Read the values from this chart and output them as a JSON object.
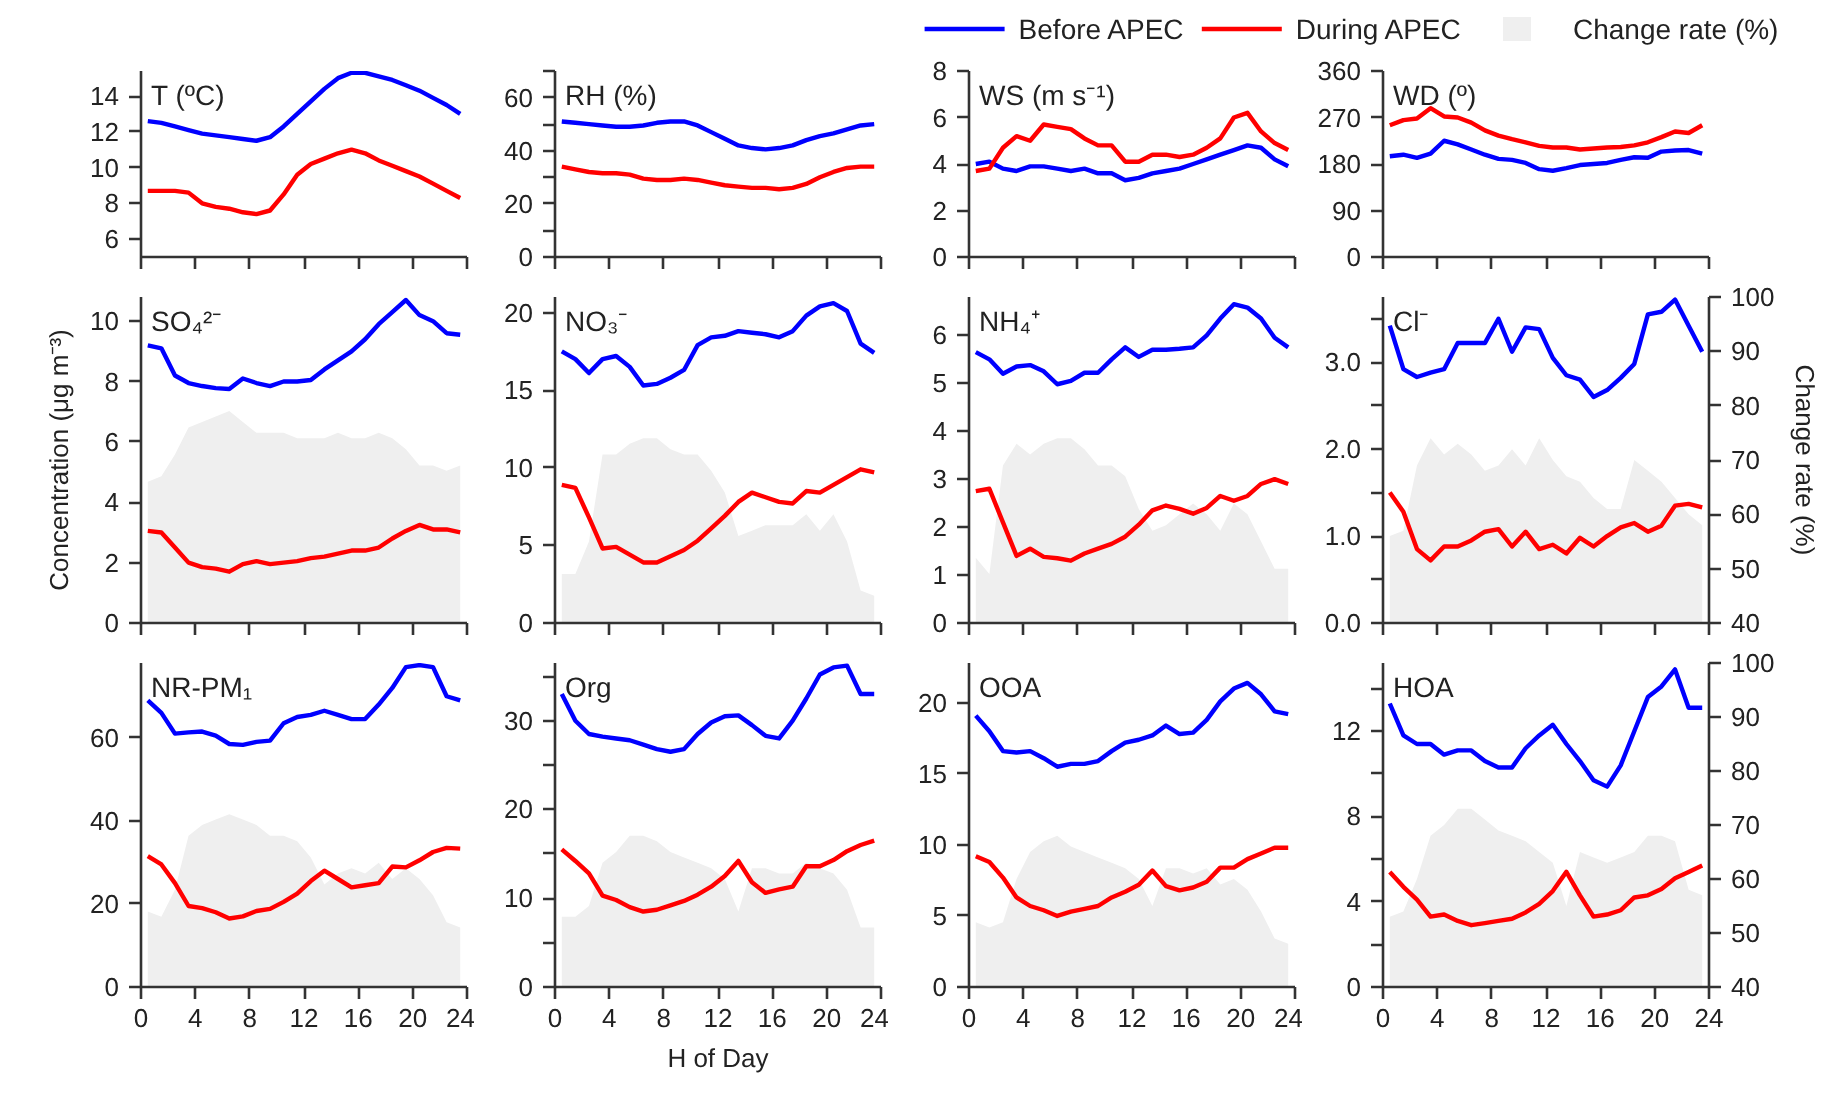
{
  "chart_data": [
    {
      "type": "line",
      "title": "T (ºC)",
      "x": [
        0.5,
        1.5,
        2.5,
        3.5,
        4.5,
        5.5,
        6.5,
        7.5,
        8.5,
        9.5,
        10.5,
        11.5,
        12.5,
        13.5,
        14.5,
        15.5,
        16.5,
        17.5,
        18.5,
        19.5,
        20.5,
        21.5,
        22.5,
        23.5
      ],
      "xlim": [
        0,
        24
      ],
      "xticks": [
        0,
        4,
        8,
        12,
        16,
        20,
        24
      ],
      "ylim": [
        5,
        15.4
      ],
      "yticks": [
        6,
        8,
        10,
        12,
        14
      ],
      "tick_labels": "y",
      "series": [
        {
          "color": "#0000ff",
          "values": [
            12.6,
            12.5,
            12.3,
            12.1,
            11.9,
            11.8,
            11.7,
            11.6,
            11.5,
            11.7,
            12.3,
            13.0,
            13.7,
            14.4,
            15.0,
            15.3,
            15.3,
            15.1,
            14.9,
            14.6,
            14.3,
            13.9,
            13.5,
            13.0
          ]
        },
        {
          "color": "#ff0000",
          "values": [
            8.7,
            8.7,
            8.7,
            8.6,
            8.0,
            7.8,
            7.7,
            7.5,
            7.4,
            7.6,
            8.5,
            9.6,
            10.2,
            10.5,
            10.8,
            11.0,
            10.8,
            10.4,
            10.1,
            9.8,
            9.5,
            9.1,
            8.7,
            8.3
          ]
        }
      ]
    },
    {
      "type": "line",
      "title": "RH (%)",
      "x": [
        0.5,
        1.5,
        2.5,
        3.5,
        4.5,
        5.5,
        6.5,
        7.5,
        8.5,
        9.5,
        10.5,
        11.5,
        12.5,
        13.5,
        14.5,
        15.5,
        16.5,
        17.5,
        18.5,
        19.5,
        20.5,
        21.5,
        22.5,
        23.5
      ],
      "xlim": [
        0,
        24
      ],
      "xticks": [
        0,
        4,
        8,
        12,
        16,
        20,
        24
      ],
      "ylim": [
        0,
        70
      ],
      "yticks": [
        0,
        {
          "value": 10,
          "label": null
        },
        20,
        {
          "value": 30,
          "label": null
        },
        40,
        {
          "value": 50,
          "label": null
        },
        60,
        {
          "value": 70,
          "label": null
        }
      ],
      "tick_labels": "y",
      "series": [
        {
          "color": "#0000ff",
          "values": [
            51,
            50.5,
            50,
            49.5,
            49,
            49,
            49.5,
            50.5,
            51,
            51,
            49.5,
            47,
            44.5,
            42,
            41,
            40.5,
            41,
            42,
            44,
            45.5,
            46.5,
            48,
            49.5,
            50
          ]
        },
        {
          "color": "#ff0000",
          "values": [
            34,
            33,
            32,
            31.5,
            31.5,
            31,
            29.5,
            29,
            29,
            29.5,
            29,
            28,
            27,
            26.5,
            26,
            26,
            25.5,
            26,
            27.5,
            30,
            32,
            33.5,
            34,
            34
          ]
        }
      ]
    },
    {
      "type": "line",
      "title": "WS (m s⁻¹)",
      "x": [
        0.5,
        1.5,
        2.5,
        3.5,
        4.5,
        5.5,
        6.5,
        7.5,
        8.5,
        9.5,
        10.5,
        11.5,
        12.5,
        13.5,
        14.5,
        15.5,
        16.5,
        17.5,
        18.5,
        19.5,
        20.5,
        21.5,
        22.5,
        23.5
      ],
      "xlim": [
        0,
        24
      ],
      "xticks": [
        0,
        4,
        8,
        12,
        16,
        20,
        24
      ],
      "ylim": [
        0,
        8
      ],
      "yticks": [
        0,
        2,
        4,
        6,
        8
      ],
      "tick_labels": "y",
      "series": [
        {
          "color": "#0000ff",
          "values": [
            4.0,
            4.1,
            3.8,
            3.7,
            3.9,
            3.9,
            3.8,
            3.7,
            3.8,
            3.6,
            3.6,
            3.3,
            3.4,
            3.6,
            3.7,
            3.8,
            4.0,
            4.2,
            4.4,
            4.6,
            4.8,
            4.7,
            4.2,
            3.9
          ]
        },
        {
          "color": "#ff0000",
          "values": [
            3.7,
            3.8,
            4.7,
            5.2,
            5.0,
            5.7,
            5.6,
            5.5,
            5.1,
            4.8,
            4.8,
            4.1,
            4.1,
            4.4,
            4.4,
            4.3,
            4.4,
            4.7,
            5.1,
            6.0,
            6.2,
            5.4,
            4.9,
            4.6
          ]
        }
      ]
    },
    {
      "type": "line",
      "title": "WD (º)",
      "x": [
        0.5,
        1.5,
        2.5,
        3.5,
        4.5,
        5.5,
        6.5,
        7.5,
        8.5,
        9.5,
        10.5,
        11.5,
        12.5,
        13.5,
        14.5,
        15.5,
        16.5,
        17.5,
        18.5,
        19.5,
        20.5,
        21.5,
        22.5,
        23.5
      ],
      "xlim": [
        0,
        24
      ],
      "xticks": [
        0,
        4,
        8,
        12,
        16,
        20,
        24
      ],
      "ylim": [
        0,
        360
      ],
      "yticks": [
        0,
        90,
        180,
        270,
        360
      ],
      "tick_labels": "y",
      "series": [
        {
          "color": "#0000ff",
          "values": [
            195,
            198,
            192,
            200,
            225,
            218,
            208,
            198,
            190,
            188,
            182,
            170,
            167,
            172,
            178,
            180,
            182,
            188,
            193,
            192,
            204,
            206,
            207,
            200
          ]
        },
        {
          "color": "#ff0000",
          "values": [
            255,
            265,
            268,
            288,
            272,
            270,
            260,
            245,
            235,
            228,
            222,
            215,
            212,
            212,
            208,
            210,
            212,
            213,
            216,
            222,
            232,
            243,
            240,
            255
          ]
        }
      ]
    },
    {
      "type": "line",
      "title": "SO₄²⁻",
      "ylabel": "Concentration (μg m⁻³)",
      "x": [
        0.5,
        1.5,
        2.5,
        3.5,
        4.5,
        5.5,
        6.5,
        7.5,
        8.5,
        9.5,
        10.5,
        11.5,
        12.5,
        13.5,
        14.5,
        15.5,
        16.5,
        17.5,
        18.5,
        19.5,
        20.5,
        21.5,
        22.5,
        23.5
      ],
      "xlim": [
        0,
        24
      ],
      "xticks": [
        0,
        4,
        8,
        12,
        16,
        20,
        24
      ],
      "ylim": [
        0,
        10.8
      ],
      "yticks": [
        0,
        2,
        4,
        6,
        8,
        10
      ],
      "y2lim": [
        40,
        100
      ],
      "tick_labels": "y",
      "series": [
        {
          "type": "area",
          "axis": "y2",
          "color": "#efefef",
          "values": [
            66,
            67,
            71,
            76,
            77,
            78,
            79,
            77,
            75,
            75,
            75,
            74,
            74,
            74,
            75,
            74,
            74,
            75,
            74,
            72,
            69,
            69,
            68,
            69
          ]
        },
        {
          "color": "#0000ff",
          "values": [
            9.2,
            9.1,
            8.2,
            7.95,
            7.85,
            7.78,
            7.75,
            8.1,
            7.95,
            7.85,
            8.0,
            8.0,
            8.05,
            8.4,
            8.7,
            9.0,
            9.4,
            9.9,
            10.3,
            10.7,
            10.2,
            10.0,
            9.6,
            9.55
          ]
        },
        {
          "color": "#ff0000",
          "values": [
            3.05,
            3.0,
            2.5,
            2.0,
            1.85,
            1.8,
            1.7,
            1.95,
            2.05,
            1.95,
            2.0,
            2.05,
            2.15,
            2.2,
            2.3,
            2.4,
            2.4,
            2.5,
            2.8,
            3.05,
            3.25,
            3.1,
            3.1,
            3.0
          ]
        }
      ]
    },
    {
      "type": "line",
      "title": "NO₃⁻",
      "x": [
        0.5,
        1.5,
        2.5,
        3.5,
        4.5,
        5.5,
        6.5,
        7.5,
        8.5,
        9.5,
        10.5,
        11.5,
        12.5,
        13.5,
        14.5,
        15.5,
        16.5,
        17.5,
        18.5,
        19.5,
        20.5,
        21.5,
        22.5,
        23.5
      ],
      "xlim": [
        0,
        24
      ],
      "xticks": [
        0,
        4,
        8,
        12,
        16,
        20,
        24
      ],
      "ylim": [
        0,
        21
      ],
      "yticks": [
        0,
        5,
        10,
        15,
        20
      ],
      "y2lim": [
        40,
        100
      ],
      "tick_labels": "y",
      "series": [
        {
          "type": "area",
          "axis": "y2",
          "color": "#efefef",
          "values": [
            49,
            49,
            55,
            71,
            71,
            73,
            74,
            74,
            72,
            71,
            71,
            68,
            64,
            56,
            57,
            58,
            58,
            58,
            60,
            57,
            60,
            55,
            46,
            45
          ]
        },
        {
          "color": "#0000ff",
          "values": [
            17.5,
            17.0,
            16.1,
            17.0,
            17.2,
            16.5,
            15.3,
            15.4,
            15.8,
            16.3,
            17.9,
            18.4,
            18.5,
            18.8,
            18.7,
            18.6,
            18.4,
            18.8,
            19.8,
            20.4,
            20.6,
            20.1,
            18.0,
            17.4
          ]
        },
        {
          "color": "#ff0000",
          "values": [
            8.9,
            8.7,
            6.8,
            4.8,
            4.9,
            4.4,
            3.9,
            3.9,
            4.3,
            4.7,
            5.3,
            6.1,
            6.9,
            7.8,
            8.4,
            8.1,
            7.8,
            7.7,
            8.5,
            8.4,
            8.9,
            9.4,
            9.9,
            9.7
          ]
        }
      ]
    },
    {
      "type": "line",
      "title": "NH₄⁺",
      "x": [
        0.5,
        1.5,
        2.5,
        3.5,
        4.5,
        5.5,
        6.5,
        7.5,
        8.5,
        9.5,
        10.5,
        11.5,
        12.5,
        13.5,
        14.5,
        15.5,
        16.5,
        17.5,
        18.5,
        19.5,
        20.5,
        21.5,
        22.5,
        23.5
      ],
      "xlim": [
        0,
        24
      ],
      "xticks": [
        0,
        4,
        8,
        12,
        16,
        20,
        24
      ],
      "ylim": [
        0,
        6.8
      ],
      "yticks": [
        0,
        1,
        2,
        3,
        4,
        5,
        6
      ],
      "y2lim": [
        40,
        100
      ],
      "tick_labels": "y",
      "series": [
        {
          "type": "area",
          "axis": "y2",
          "color": "#efefef",
          "values": [
            52,
            49,
            69,
            73,
            71,
            73,
            74,
            74,
            72,
            69,
            69,
            67,
            61,
            57,
            58,
            60,
            62,
            60,
            57,
            62,
            60,
            55,
            50,
            50
          ]
        },
        {
          "color": "#0000ff",
          "values": [
            5.65,
            5.5,
            5.2,
            5.35,
            5.38,
            5.25,
            4.98,
            5.05,
            5.22,
            5.22,
            5.5,
            5.75,
            5.55,
            5.7,
            5.7,
            5.72,
            5.75,
            6.0,
            6.35,
            6.65,
            6.58,
            6.35,
            5.95,
            5.75
          ]
        },
        {
          "color": "#ff0000",
          "values": [
            2.75,
            2.8,
            2.1,
            1.4,
            1.55,
            1.38,
            1.35,
            1.3,
            1.45,
            1.55,
            1.65,
            1.8,
            2.05,
            2.35,
            2.45,
            2.38,
            2.28,
            2.4,
            2.65,
            2.55,
            2.65,
            2.9,
            3.0,
            2.9
          ]
        }
      ]
    },
    {
      "type": "line",
      "title": "Cl⁻",
      "y2label": "Change rate (%)",
      "legend": "top",
      "x": [
        0.5,
        1.5,
        2.5,
        3.5,
        4.5,
        5.5,
        6.5,
        7.5,
        8.5,
        9.5,
        10.5,
        11.5,
        12.5,
        13.5,
        14.5,
        15.5,
        16.5,
        17.5,
        18.5,
        19.5,
        20.5,
        21.5,
        22.5,
        23.5
      ],
      "xlim": [
        0,
        24
      ],
      "xticks": [
        0,
        4,
        8,
        12,
        16,
        20,
        24
      ],
      "ylim": [
        0,
        3.75
      ],
      "yticks": [
        {
          "value": 0,
          "label": "0.0"
        },
        {
          "value": 0.5,
          "label": null
        },
        {
          "value": 1,
          "label": "1.0"
        },
        {
          "value": 1.5,
          "label": null
        },
        {
          "value": 2,
          "label": "2.0"
        },
        {
          "value": 2.5,
          "label": null
        },
        {
          "value": 3,
          "label": "3.0"
        },
        {
          "value": 3.5,
          "label": null
        }
      ],
      "y2lim": [
        40,
        100
      ],
      "y2ticks": [
        40,
        50,
        60,
        70,
        80,
        90,
        100
      ],
      "tick_labels": "y",
      "series": [
        {
          "name": "Before APEC",
          "color": "#0000ff",
          "values": [
            3.42,
            2.92,
            2.83,
            2.88,
            2.92,
            3.22,
            3.22,
            3.22,
            3.5,
            3.12,
            3.4,
            3.38,
            3.05,
            2.85,
            2.8,
            2.6,
            2.68,
            2.82,
            2.98,
            3.55,
            3.58,
            3.72,
            3.42,
            3.12
          ]
        },
        {
          "name": "During APEC",
          "color": "#ff0000",
          "values": [
            1.5,
            1.28,
            0.85,
            0.72,
            0.88,
            0.88,
            0.95,
            1.05,
            1.08,
            0.88,
            1.05,
            0.85,
            0.9,
            0.8,
            0.98,
            0.88,
            1.0,
            1.1,
            1.15,
            1.05,
            1.12,
            1.35,
            1.37,
            1.33
          ]
        },
        {
          "type": "area",
          "axis": "y2",
          "name": "Change rate (%)",
          "color": "#efefef",
          "values": [
            56,
            57,
            69,
            74,
            71,
            73,
            71,
            68,
            69,
            72,
            69,
            74,
            70,
            67,
            66,
            63,
            61,
            61,
            70,
            68,
            66,
            63,
            60,
            58
          ]
        }
      ]
    },
    {
      "type": "line",
      "title": "NR-PM₁",
      "x": [
        0.5,
        1.5,
        2.5,
        3.5,
        4.5,
        5.5,
        6.5,
        7.5,
        8.5,
        9.5,
        10.5,
        11.5,
        12.5,
        13.5,
        14.5,
        15.5,
        16.5,
        17.5,
        18.5,
        19.5,
        20.5,
        21.5,
        22.5,
        23.5
      ],
      "xlim": [
        0,
        24
      ],
      "xticks": [
        0,
        4,
        8,
        12,
        16,
        20,
        24
      ],
      "ylim": [
        0,
        78
      ],
      "yticks": [
        0,
        20,
        40,
        60
      ],
      "y2lim": [
        40,
        100
      ],
      "series": [
        {
          "type": "area",
          "axis": "y2",
          "color": "#efefef",
          "values": [
            54,
            53,
            58,
            68,
            70,
            71,
            72,
            71,
            70,
            68,
            68,
            67,
            64,
            59,
            61,
            62,
            61,
            63,
            60,
            62,
            60,
            57,
            52,
            51
          ]
        },
        {
          "color": "#0000ff",
          "values": [
            69,
            66,
            61,
            61.3,
            61.5,
            60.5,
            58.5,
            58.3,
            59,
            59.3,
            63.5,
            65,
            65.5,
            66.5,
            65.5,
            64.5,
            64.5,
            68,
            72,
            77,
            77.5,
            77,
            70,
            69
          ]
        },
        {
          "color": "#ff0000",
          "values": [
            31.5,
            29.5,
            25,
            19.5,
            19,
            18,
            16.5,
            17,
            18.3,
            18.8,
            20.5,
            22.5,
            25.5,
            28,
            26,
            24,
            24.5,
            25,
            29,
            28.8,
            30.5,
            32.5,
            33.5,
            33.3
          ]
        }
      ]
    },
    {
      "type": "line",
      "title": "Org",
      "xlabel": "H of Day",
      "x": [
        0.5,
        1.5,
        2.5,
        3.5,
        4.5,
        5.5,
        6.5,
        7.5,
        8.5,
        9.5,
        10.5,
        11.5,
        12.5,
        13.5,
        14.5,
        15.5,
        16.5,
        17.5,
        18.5,
        19.5,
        20.5,
        21.5,
        22.5,
        23.5
      ],
      "xlim": [
        0,
        24
      ],
      "xticks": [
        0,
        4,
        8,
        12,
        16,
        20,
        24
      ],
      "ylim": [
        0,
        36.5
      ],
      "yticks": [
        0,
        {
          "value": 5,
          "label": null
        },
        10,
        {
          "value": 15,
          "label": null
        },
        20,
        {
          "value": 25,
          "label": null
        },
        30,
        {
          "value": 35,
          "label": null
        }
      ],
      "y2lim": [
        40,
        100
      ],
      "series": [
        {
          "type": "area",
          "axis": "y2",
          "color": "#efefef",
          "values": [
            53,
            53,
            55,
            63,
            65,
            68,
            68,
            67,
            65,
            64,
            63,
            62,
            60,
            54,
            62,
            62,
            61,
            61,
            63,
            62,
            61,
            58,
            51,
            51
          ]
        },
        {
          "color": "#0000ff",
          "values": [
            33,
            30,
            28.5,
            28.2,
            28,
            27.8,
            27.3,
            26.8,
            26.5,
            26.8,
            28.5,
            29.8,
            30.5,
            30.6,
            29.5,
            28.3,
            28,
            30,
            32.5,
            35.2,
            36,
            36.2,
            33,
            33
          ]
        },
        {
          "color": "#ff0000",
          "values": [
            15.5,
            14.2,
            12.8,
            10.3,
            9.8,
            9,
            8.5,
            8.7,
            9.2,
            9.7,
            10.4,
            11.3,
            12.5,
            14.2,
            11.8,
            10.6,
            11,
            11.3,
            13.6,
            13.6,
            14.3,
            15.3,
            16,
            16.5
          ]
        }
      ]
    },
    {
      "type": "line",
      "title": "OOA",
      "x": [
        0.5,
        1.5,
        2.5,
        3.5,
        4.5,
        5.5,
        6.5,
        7.5,
        8.5,
        9.5,
        10.5,
        11.5,
        12.5,
        13.5,
        14.5,
        15.5,
        16.5,
        17.5,
        18.5,
        19.5,
        20.5,
        21.5,
        22.5,
        23.5
      ],
      "xlim": [
        0,
        24
      ],
      "xticks": [
        0,
        4,
        8,
        12,
        16,
        20,
        24
      ],
      "ylim": [
        0,
        22.8
      ],
      "yticks": [
        0,
        5,
        10,
        15,
        20
      ],
      "y2lim": [
        40,
        100
      ],
      "series": [
        {
          "type": "area",
          "axis": "y2",
          "color": "#efefef",
          "values": [
            52,
            51,
            52,
            60,
            65,
            67,
            68,
            66,
            65,
            64,
            63,
            62,
            60,
            55,
            62,
            62,
            61,
            62,
            59,
            60,
            58,
            54,
            49,
            48
          ]
        },
        {
          "color": "#0000ff",
          "values": [
            19.1,
            18,
            16.6,
            16.5,
            16.6,
            16.1,
            15.5,
            15.7,
            15.7,
            15.9,
            16.6,
            17.2,
            17.4,
            17.7,
            18.4,
            17.8,
            17.9,
            18.8,
            20.1,
            21.0,
            21.4,
            20.6,
            19.4,
            19.2
          ]
        },
        {
          "color": "#ff0000",
          "values": [
            9.2,
            8.8,
            7.7,
            6.3,
            5.7,
            5.4,
            5.0,
            5.3,
            5.5,
            5.7,
            6.3,
            6.7,
            7.2,
            8.2,
            7.1,
            6.8,
            7.0,
            7.4,
            8.4,
            8.4,
            9.0,
            9.4,
            9.8,
            9.8
          ]
        }
      ]
    },
    {
      "type": "line",
      "title": "HOA",
      "x": [
        0.5,
        1.5,
        2.5,
        3.5,
        4.5,
        5.5,
        6.5,
        7.5,
        8.5,
        9.5,
        10.5,
        11.5,
        12.5,
        13.5,
        14.5,
        15.5,
        16.5,
        17.5,
        18.5,
        19.5,
        20.5,
        21.5,
        22.5,
        23.5
      ],
      "xlim": [
        0,
        24
      ],
      "xticks": [
        0,
        4,
        8,
        12,
        16,
        20,
        24
      ],
      "ylim": [
        0,
        15.2
      ],
      "yticks": [
        0,
        {
          "value": 2,
          "label": null
        },
        4,
        {
          "value": 6,
          "label": null
        },
        8,
        {
          "value": 10,
          "label": null
        },
        12,
        {
          "value": 14,
          "label": null
        }
      ],
      "y2lim": [
        40,
        100
      ],
      "y2ticks": [
        40,
        50,
        60,
        70,
        80,
        90,
        100
      ],
      "series": [
        {
          "type": "area",
          "axis": "y2",
          "color": "#efefef",
          "values": [
            53,
            54,
            60,
            68,
            70,
            73,
            73,
            71,
            69,
            68,
            67,
            65,
            63,
            55,
            65,
            64,
            63,
            64,
            65,
            68,
            68,
            67,
            58,
            57
          ]
        },
        {
          "color": "#0000ff",
          "values": [
            13.3,
            11.8,
            11.4,
            11.4,
            10.9,
            11.1,
            11.1,
            10.6,
            10.3,
            10.3,
            11.2,
            11.8,
            12.3,
            11.4,
            10.6,
            9.7,
            9.4,
            10.4,
            12.0,
            13.6,
            14.1,
            14.9,
            13.1,
            13.1
          ]
        },
        {
          "color": "#ff0000",
          "values": [
            5.4,
            4.7,
            4.1,
            3.3,
            3.4,
            3.1,
            2.9,
            3.0,
            3.1,
            3.2,
            3.5,
            3.9,
            4.5,
            5.4,
            4.3,
            3.3,
            3.4,
            3.6,
            4.2,
            4.3,
            4.6,
            5.1,
            5.4,
            5.7
          ]
        }
      ]
    }
  ]
}
